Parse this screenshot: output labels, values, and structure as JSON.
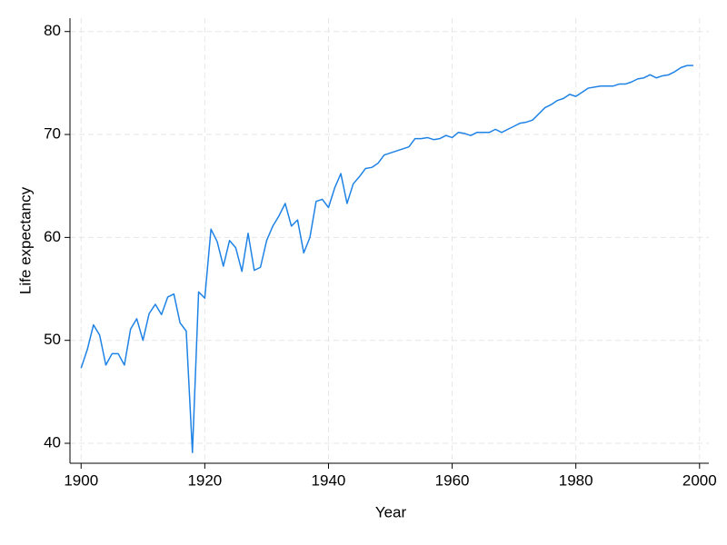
{
  "chart_data": {
    "type": "line",
    "x_label": "Year",
    "y_label": "Life expectancy",
    "x": [
      1900,
      1901,
      1902,
      1903,
      1904,
      1905,
      1906,
      1907,
      1908,
      1909,
      1910,
      1911,
      1912,
      1913,
      1914,
      1915,
      1916,
      1917,
      1918,
      1919,
      1920,
      1921,
      1922,
      1923,
      1924,
      1925,
      1926,
      1927,
      1928,
      1929,
      1930,
      1931,
      1932,
      1933,
      1934,
      1935,
      1936,
      1937,
      1938,
      1939,
      1940,
      1941,
      1942,
      1943,
      1944,
      1945,
      1946,
      1947,
      1948,
      1949,
      1950,
      1951,
      1952,
      1953,
      1954,
      1955,
      1956,
      1957,
      1958,
      1959,
      1960,
      1961,
      1962,
      1963,
      1964,
      1965,
      1966,
      1967,
      1968,
      1969,
      1970,
      1971,
      1972,
      1973,
      1974,
      1975,
      1976,
      1977,
      1978,
      1979,
      1980,
      1981,
      1982,
      1983,
      1984,
      1985,
      1986,
      1987,
      1988,
      1989,
      1990,
      1991,
      1992,
      1993,
      1994,
      1995,
      1996,
      1997,
      1998,
      1999
    ],
    "values": [
      47.3,
      49.1,
      51.5,
      50.5,
      47.6,
      48.7,
      48.7,
      47.6,
      51.1,
      52.1,
      50.0,
      52.6,
      53.5,
      52.5,
      54.2,
      54.5,
      51.7,
      50.9,
      39.1,
      54.7,
      54.1,
      60.8,
      59.6,
      57.2,
      59.7,
      59.0,
      56.7,
      60.4,
      56.8,
      57.1,
      59.7,
      61.1,
      62.1,
      63.3,
      61.1,
      61.7,
      58.5,
      60.0,
      63.5,
      63.7,
      62.9,
      64.8,
      66.2,
      63.3,
      65.2,
      65.9,
      66.7,
      66.8,
      67.2,
      68.0,
      68.2,
      68.4,
      68.6,
      68.8,
      69.6,
      69.6,
      69.7,
      69.5,
      69.6,
      69.9,
      69.7,
      70.2,
      70.1,
      69.9,
      70.2,
      70.2,
      70.2,
      70.5,
      70.2,
      70.5,
      70.8,
      71.1,
      71.2,
      71.4,
      72.0,
      72.6,
      72.9,
      73.3,
      73.5,
      73.9,
      73.7,
      74.1,
      74.5,
      74.6,
      74.7,
      74.7,
      74.7,
      74.9,
      74.9,
      75.1,
      75.4,
      75.5,
      75.8,
      75.5,
      75.7,
      75.8,
      76.1,
      76.5,
      76.7,
      76.7
    ],
    "color": "#1f83e6",
    "xlim": [
      1898.2,
      2001.5
    ],
    "xticks": [
      1900,
      1920,
      1940,
      1960,
      1980,
      2000
    ],
    "ylim": [
      38.06,
      81.3
    ],
    "yticks": [
      40,
      50,
      60,
      70,
      80
    ],
    "grid": true
  }
}
